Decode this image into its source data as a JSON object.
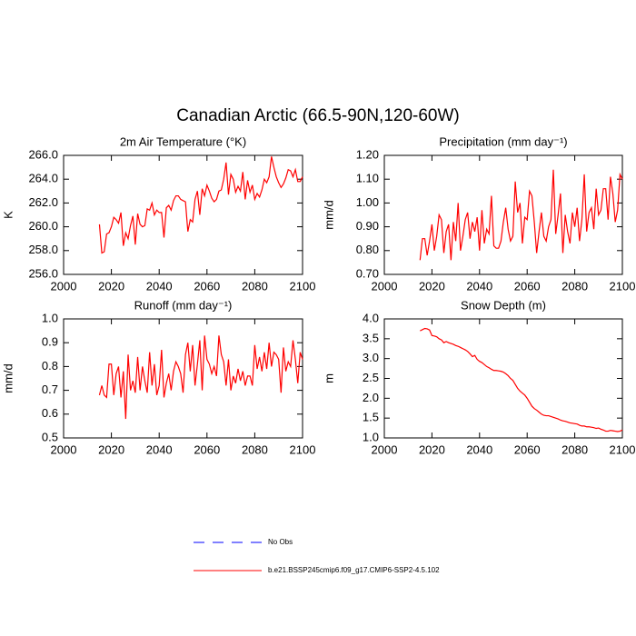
{
  "title": "Canadian Arctic (66.5-90N,120-60W)",
  "chart_data": [
    {
      "type": "line",
      "title": "2m Air Temperature (°K)",
      "ylabel": "K",
      "x": [
        2015,
        2016,
        2017,
        2018,
        2019,
        2020,
        2021,
        2022,
        2023,
        2024,
        2025,
        2026,
        2027,
        2028,
        2029,
        2030,
        2031,
        2032,
        2033,
        2034,
        2035,
        2036,
        2037,
        2038,
        2039,
        2040,
        2041,
        2042,
        2043,
        2044,
        2045,
        2046,
        2047,
        2048,
        2049,
        2050,
        2051,
        2052,
        2053,
        2054,
        2055,
        2056,
        2057,
        2058,
        2059,
        2060,
        2061,
        2062,
        2063,
        2064,
        2065,
        2066,
        2067,
        2068,
        2069,
        2070,
        2071,
        2072,
        2073,
        2074,
        2075,
        2076,
        2077,
        2078,
        2079,
        2080,
        2081,
        2082,
        2083,
        2084,
        2085,
        2086,
        2087,
        2088,
        2089,
        2090,
        2091,
        2092,
        2093,
        2094,
        2095,
        2096,
        2097,
        2098,
        2099,
        2100
      ],
      "series": [
        {
          "color": "#ff0000",
          "values": [
            260.2,
            257.8,
            257.9,
            259.4,
            259.5,
            260.0,
            260.8,
            260.6,
            260.3,
            261.2,
            258.4,
            259.5,
            259.0,
            260.1,
            260.9,
            258.5,
            261.1,
            260.2,
            260.0,
            260.1,
            261.5,
            261.4,
            262.0,
            261.0,
            261.4,
            261.2,
            261.2,
            259.1,
            261.6,
            261.8,
            261.4,
            262.2,
            262.6,
            262.6,
            262.3,
            262.2,
            262.1,
            259.6,
            260.6,
            260.4,
            262.3,
            263.0,
            261.0,
            263.2,
            262.6,
            263.5,
            263.0,
            262.4,
            262.1,
            262.3,
            263.0,
            263.1,
            264.0,
            265.4,
            262.7,
            264.4,
            264.0,
            262.9,
            263.4,
            263.0,
            264.6,
            262.3,
            263.9,
            262.9,
            263.5,
            262.3,
            262.8,
            262.5,
            263.1,
            264.0,
            263.7,
            264.2,
            265.9,
            265.0,
            264.2,
            263.7,
            263.3,
            263.6,
            264.1,
            264.8,
            264.7,
            264.2,
            264.8,
            263.8,
            263.8,
            264.2
          ]
        }
      ],
      "xlim": [
        2000,
        2100
      ],
      "xticks": [
        2000,
        2020,
        2040,
        2060,
        2080,
        2100
      ],
      "ylim": [
        256,
        266
      ],
      "yticks": [
        {
          "value": 256,
          "label": "256.0"
        },
        {
          "value": 258,
          "label": "258.0"
        },
        {
          "value": 260,
          "label": "260.0"
        },
        {
          "value": 262,
          "label": "262.0"
        },
        {
          "value": 264,
          "label": "264.0"
        },
        {
          "value": 266,
          "label": "266.0"
        }
      ]
    },
    {
      "type": "line",
      "title": "Precipitation (mm day⁻¹)",
      "ylabel": "mm/d",
      "x": [
        2015,
        2016,
        2017,
        2018,
        2019,
        2020,
        2021,
        2022,
        2023,
        2024,
        2025,
        2026,
        2027,
        2028,
        2029,
        2030,
        2031,
        2032,
        2033,
        2034,
        2035,
        2036,
        2037,
        2038,
        2039,
        2040,
        2041,
        2042,
        2043,
        2044,
        2045,
        2046,
        2047,
        2048,
        2049,
        2050,
        2051,
        2052,
        2053,
        2054,
        2055,
        2056,
        2057,
        2058,
        2059,
        2060,
        2061,
        2062,
        2063,
        2064,
        2065,
        2066,
        2067,
        2068,
        2069,
        2070,
        2071,
        2072,
        2073,
        2074,
        2075,
        2076,
        2077,
        2078,
        2079,
        2080,
        2081,
        2082,
        2083,
        2084,
        2085,
        2086,
        2087,
        2088,
        2089,
        2090,
        2091,
        2092,
        2093,
        2094,
        2095,
        2096,
        2097,
        2098,
        2099,
        2100
      ],
      "series": [
        {
          "color": "#ff0000",
          "values": [
            0.76,
            0.85,
            0.85,
            0.78,
            0.84,
            0.91,
            0.8,
            0.86,
            0.95,
            0.93,
            0.79,
            0.88,
            0.91,
            0.76,
            0.92,
            0.84,
            1.0,
            0.8,
            0.86,
            0.93,
            0.96,
            0.85,
            0.92,
            0.88,
            0.94,
            0.8,
            0.97,
            0.83,
            0.89,
            0.87,
            1.03,
            0.82,
            0.81,
            0.81,
            0.84,
            0.92,
            0.98,
            0.89,
            0.84,
            0.86,
            1.09,
            0.96,
            1.0,
            0.83,
            0.94,
            0.93,
            1.05,
            1.03,
            0.92,
            0.79,
            0.88,
            0.96,
            0.86,
            0.84,
            0.9,
            0.93,
            1.14,
            0.87,
            0.95,
            1.04,
            0.79,
            0.95,
            0.88,
            0.83,
            0.96,
            0.9,
            0.98,
            0.84,
            0.93,
            1.12,
            0.88,
            0.96,
            0.98,
            0.89,
            1.06,
            0.95,
            0.97,
            1.06,
            1.06,
            0.93,
            1.11,
            1.04,
            0.92,
            0.97,
            1.12,
            1.1
          ]
        }
      ],
      "xlim": [
        2000,
        2100
      ],
      "xticks": [
        2000,
        2020,
        2040,
        2060,
        2080,
        2100
      ],
      "ylim": [
        0.7,
        1.2
      ],
      "yticks": [
        {
          "value": 0.7,
          "label": "0.70"
        },
        {
          "value": 0.8,
          "label": "0.80"
        },
        {
          "value": 0.9,
          "label": "0.90"
        },
        {
          "value": 1.0,
          "label": "1.00"
        },
        {
          "value": 1.1,
          "label": "1.10"
        },
        {
          "value": 1.2,
          "label": "1.20"
        }
      ]
    },
    {
      "type": "line",
      "title": "Runoff (mm day⁻¹)",
      "ylabel": "mm/d",
      "x": [
        2015,
        2016,
        2017,
        2018,
        2019,
        2020,
        2021,
        2022,
        2023,
        2024,
        2025,
        2026,
        2027,
        2028,
        2029,
        2030,
        2031,
        2032,
        2033,
        2034,
        2035,
        2036,
        2037,
        2038,
        2039,
        2040,
        2041,
        2042,
        2043,
        2044,
        2045,
        2046,
        2047,
        2048,
        2049,
        2050,
        2051,
        2052,
        2053,
        2054,
        2055,
        2056,
        2057,
        2058,
        2059,
        2060,
        2061,
        2062,
        2063,
        2064,
        2065,
        2066,
        2067,
        2068,
        2069,
        2070,
        2071,
        2072,
        2073,
        2074,
        2075,
        2076,
        2077,
        2078,
        2079,
        2080,
        2081,
        2082,
        2083,
        2084,
        2085,
        2086,
        2087,
        2088,
        2089,
        2090,
        2091,
        2092,
        2093,
        2094,
        2095,
        2096,
        2097,
        2098,
        2099,
        2100
      ],
      "series": [
        {
          "color": "#ff0000",
          "values": [
            0.68,
            0.72,
            0.68,
            0.67,
            0.81,
            0.81,
            0.68,
            0.77,
            0.8,
            0.67,
            0.78,
            0.58,
            0.85,
            0.7,
            0.74,
            0.69,
            0.84,
            0.7,
            0.8,
            0.74,
            0.69,
            0.86,
            0.72,
            0.81,
            0.68,
            0.72,
            0.87,
            0.67,
            0.73,
            0.77,
            0.7,
            0.78,
            0.82,
            0.8,
            0.77,
            0.69,
            0.85,
            0.9,
            0.78,
            0.89,
            0.72,
            0.81,
            0.91,
            0.7,
            0.93,
            0.83,
            0.81,
            0.77,
            0.8,
            0.76,
            0.93,
            0.85,
            0.82,
            0.72,
            0.83,
            0.7,
            0.76,
            0.73,
            0.79,
            0.74,
            0.78,
            0.72,
            0.76,
            0.76,
            0.72,
            0.89,
            0.79,
            0.84,
            0.78,
            0.86,
            0.79,
            0.9,
            0.8,
            0.86,
            0.85,
            0.83,
            0.69,
            0.88,
            0.78,
            0.82,
            0.8,
            0.91,
            0.83,
            0.73,
            0.86,
            0.83
          ]
        }
      ],
      "xlim": [
        2000,
        2100
      ],
      "xticks": [
        2000,
        2020,
        2040,
        2060,
        2080,
        2100
      ],
      "ylim": [
        0.5,
        1.0
      ],
      "yticks": [
        0.5,
        0.6,
        0.7,
        0.8,
        0.9,
        {
          "value": 1.0,
          "label": "1.0"
        }
      ]
    },
    {
      "type": "line",
      "title": "Snow Depth (m)",
      "ylabel": "m",
      "x": [
        2015,
        2016,
        2017,
        2018,
        2019,
        2020,
        2021,
        2022,
        2023,
        2024,
        2025,
        2026,
        2027,
        2028,
        2029,
        2030,
        2031,
        2032,
        2033,
        2034,
        2035,
        2036,
        2037,
        2038,
        2039,
        2040,
        2041,
        2042,
        2043,
        2044,
        2045,
        2046,
        2047,
        2048,
        2049,
        2050,
        2051,
        2052,
        2053,
        2054,
        2055,
        2056,
        2057,
        2058,
        2059,
        2060,
        2061,
        2062,
        2063,
        2064,
        2065,
        2066,
        2067,
        2068,
        2069,
        2070,
        2071,
        2072,
        2073,
        2074,
        2075,
        2076,
        2077,
        2078,
        2079,
        2080,
        2081,
        2082,
        2083,
        2084,
        2085,
        2086,
        2087,
        2088,
        2089,
        2090,
        2091,
        2092,
        2093,
        2094,
        2095,
        2096,
        2097,
        2098,
        2099,
        2100
      ],
      "series": [
        {
          "color": "#ff0000",
          "values": [
            3.7,
            3.73,
            3.76,
            3.75,
            3.72,
            3.58,
            3.57,
            3.55,
            3.5,
            3.47,
            3.4,
            3.43,
            3.4,
            3.38,
            3.36,
            3.33,
            3.31,
            3.28,
            3.25,
            3.22,
            3.18,
            3.12,
            3.05,
            3.08,
            2.98,
            2.93,
            2.9,
            2.85,
            2.8,
            2.77,
            2.73,
            2.7,
            2.7,
            2.69,
            2.68,
            2.66,
            2.62,
            2.57,
            2.5,
            2.45,
            2.35,
            2.25,
            2.18,
            2.13,
            2.08,
            2.0,
            1.9,
            1.8,
            1.74,
            1.7,
            1.65,
            1.6,
            1.57,
            1.56,
            1.56,
            1.54,
            1.52,
            1.5,
            1.48,
            1.45,
            1.43,
            1.42,
            1.4,
            1.38,
            1.37,
            1.36,
            1.35,
            1.32,
            1.3,
            1.3,
            1.28,
            1.28,
            1.27,
            1.26,
            1.24,
            1.25,
            1.22,
            1.2,
            1.17,
            1.17,
            1.19,
            1.18,
            1.17,
            1.16,
            1.17,
            1.2
          ]
        }
      ],
      "xlim": [
        2000,
        2100
      ],
      "xticks": [
        2000,
        2020,
        2040,
        2060,
        2080,
        2100
      ],
      "ylim": [
        1.0,
        4.0
      ],
      "yticks": [
        {
          "value": 1.0,
          "label": "1.0"
        },
        1.5,
        {
          "value": 2.0,
          "label": "2.0"
        },
        2.5,
        {
          "value": 3.0,
          "label": "3.0"
        },
        3.5,
        {
          "value": 4.0,
          "label": "4.0"
        }
      ]
    }
  ],
  "legend": [
    {
      "name": "No Obs",
      "color": "#0000ff",
      "dashed": true
    },
    {
      "name": "b.e21.BSSP245cmip6.f09_g17.CMIP6-SSP2-4.5.102",
      "color": "#ff0000",
      "dashed": false
    }
  ]
}
